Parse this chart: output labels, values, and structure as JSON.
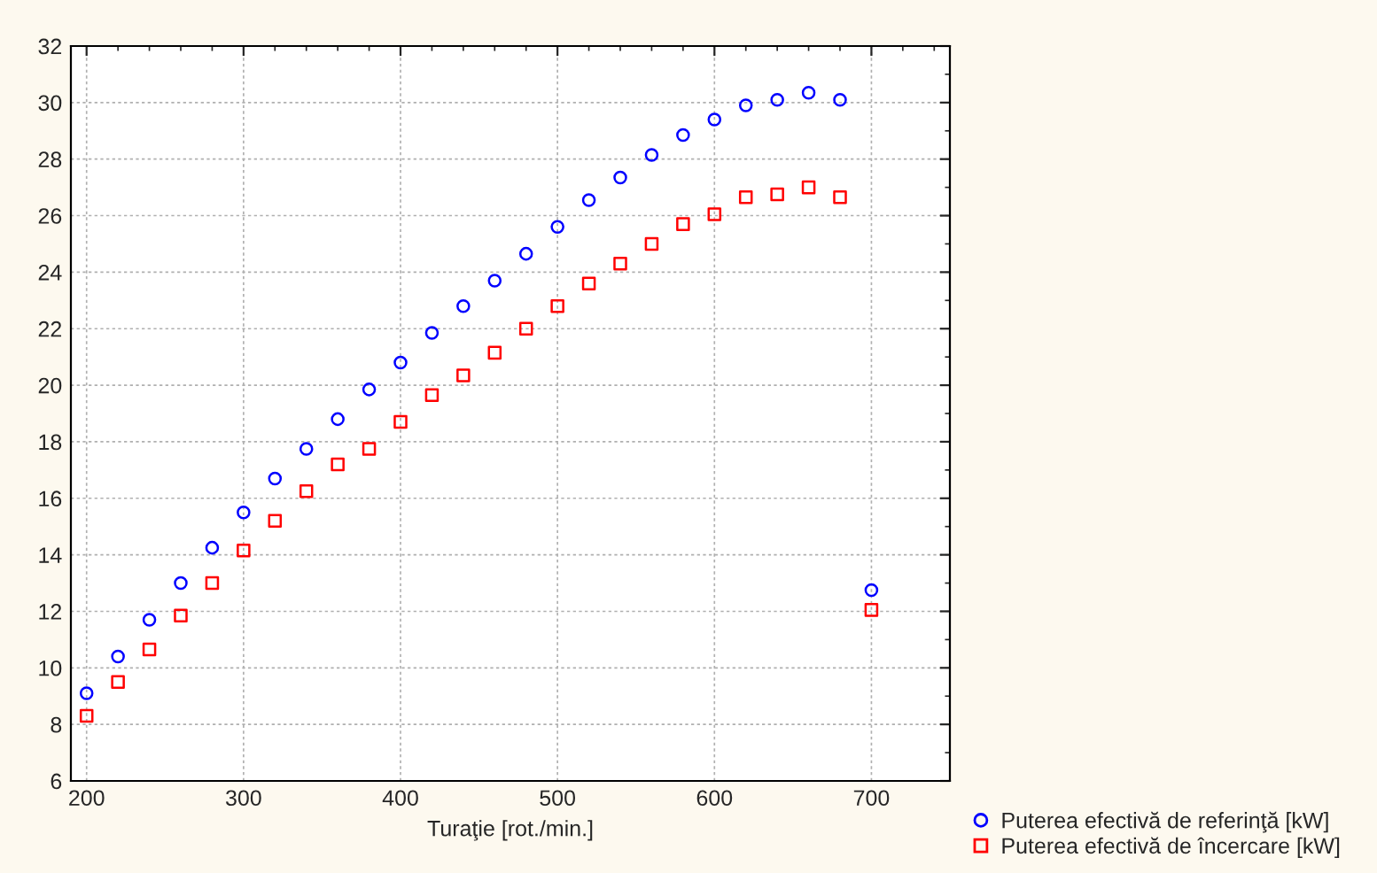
{
  "chart_data": {
    "type": "scatter",
    "xlabel": "Turaţie [rot./min.]",
    "x": [
      200,
      220,
      240,
      260,
      280,
      300,
      320,
      340,
      360,
      380,
      400,
      420,
      440,
      460,
      480,
      500,
      520,
      540,
      560,
      580,
      600,
      620,
      640,
      660,
      680,
      700
    ],
    "series": [
      {
        "name": "Puterea efectivă de referinţă [kW]",
        "color": "#0000ff",
        "marker": "circle",
        "values": [
          9.1,
          10.4,
          11.7,
          13.0,
          14.25,
          15.5,
          16.7,
          17.75,
          18.8,
          19.85,
          20.8,
          21.85,
          22.8,
          23.7,
          24.65,
          25.6,
          26.55,
          27.35,
          28.15,
          28.85,
          29.4,
          29.9,
          30.1,
          30.35,
          30.1,
          12.75
        ]
      },
      {
        "name": "Puterea efectivă de încercare [kW]",
        "color": "#ff0000",
        "marker": "square",
        "values": [
          8.3,
          9.5,
          10.65,
          11.85,
          13.0,
          14.15,
          15.2,
          16.25,
          17.2,
          17.75,
          18.7,
          19.65,
          20.35,
          21.15,
          22.0,
          22.8,
          23.6,
          24.3,
          25.0,
          25.7,
          26.05,
          26.65,
          26.75,
          27.0,
          26.65,
          12.05
        ]
      }
    ],
    "xlim": [
      190,
      750
    ],
    "ylim": [
      6,
      32
    ],
    "xticks": [
      200,
      300,
      400,
      500,
      600,
      700
    ],
    "yticks": [
      6,
      8,
      10,
      12,
      14,
      16,
      18,
      20,
      22,
      24,
      26,
      28,
      30,
      32
    ],
    "grid": true,
    "legend": "bottom right"
  }
}
